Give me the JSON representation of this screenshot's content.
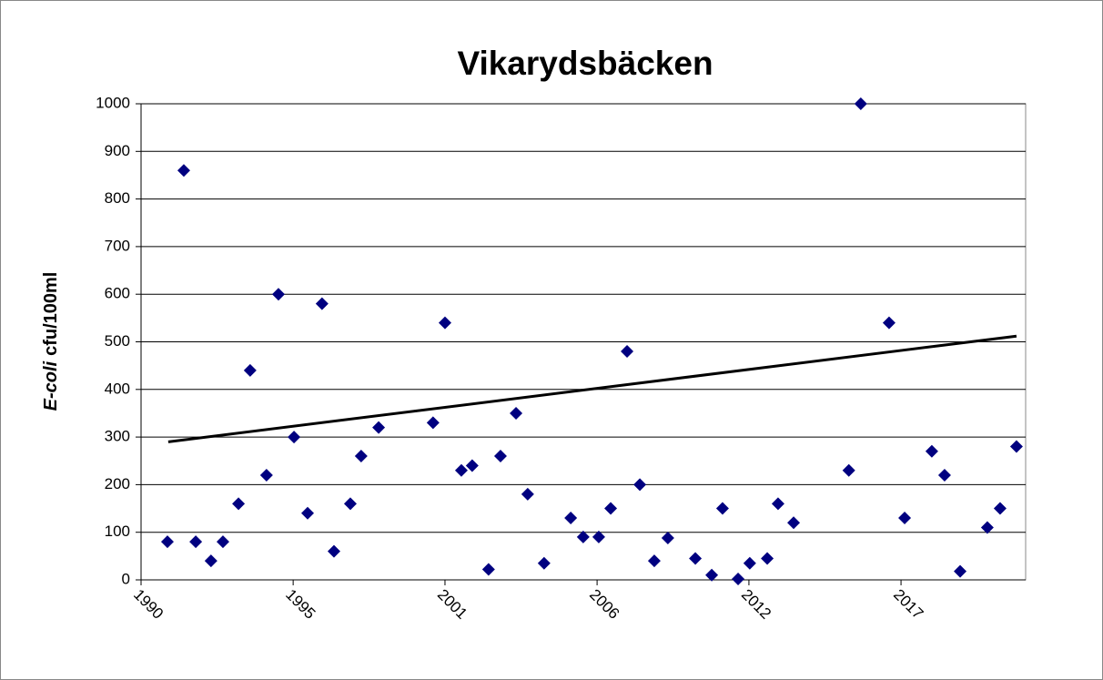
{
  "chart_data": {
    "type": "scatter",
    "title": "Vikarydsbäcken",
    "ylabel": [
      "E-coli",
      "cfu/100ml"
    ],
    "x": [
      1991.45,
      1992.04,
      1992.47,
      1993.02,
      1993.45,
      1994.01,
      1994.43,
      1995.02,
      1995.45,
      1996.01,
      1996.5,
      1997.02,
      1997.45,
      1998.04,
      1998.43,
      1999.06,
      2001.02,
      2001.45,
      2002.04,
      2002.43,
      2003.02,
      2003.45,
      2004.01,
      2004.43,
      2005.02,
      2005.98,
      2006.43,
      2006.99,
      2007.42,
      2008.01,
      2008.47,
      2008.99,
      2009.48,
      2010.47,
      2011.06,
      2011.45,
      2012.01,
      2012.43,
      2013.06,
      2013.45,
      2014.01,
      2016.0,
      2016.43,
      2017.45,
      2018.01,
      2018.99,
      2019.45,
      2020.01,
      2020.99,
      2021.45,
      2022.04
    ],
    "values": [
      80,
      860,
      80,
      40,
      80,
      160,
      440,
      220,
      600,
      300,
      140,
      580,
      60,
      160,
      260,
      320,
      330,
      540,
      230,
      240,
      22,
      260,
      350,
      180,
      35,
      130,
      90,
      90,
      150,
      480,
      200,
      40,
      88,
      45,
      10,
      150,
      2,
      35,
      45,
      160,
      120,
      230,
      1000,
      540,
      130,
      270,
      220,
      18,
      110,
      150,
      280
    ],
    "color": "#000080",
    "trendline": {
      "x": [
        1991.48,
        2022.04
      ],
      "values": [
        290,
        512
      ],
      "color": "#000000"
    },
    "xlim": [
      1990.5,
      2022.37
    ],
    "xticks": [
      {
        "value": 1990.5,
        "label": "1990"
      },
      {
        "value": 1995.98,
        "label": "1995"
      },
      {
        "value": 2001.45,
        "label": "2001"
      },
      {
        "value": 2006.93,
        "label": "2006"
      },
      {
        "value": 2012.4,
        "label": "2012"
      },
      {
        "value": 2017.88,
        "label": "2017"
      }
    ],
    "ylim": [
      0,
      1000
    ],
    "yticks": [
      0,
      100,
      200,
      300,
      400,
      500,
      600,
      700,
      800,
      900,
      1000
    ],
    "grid": true
  }
}
